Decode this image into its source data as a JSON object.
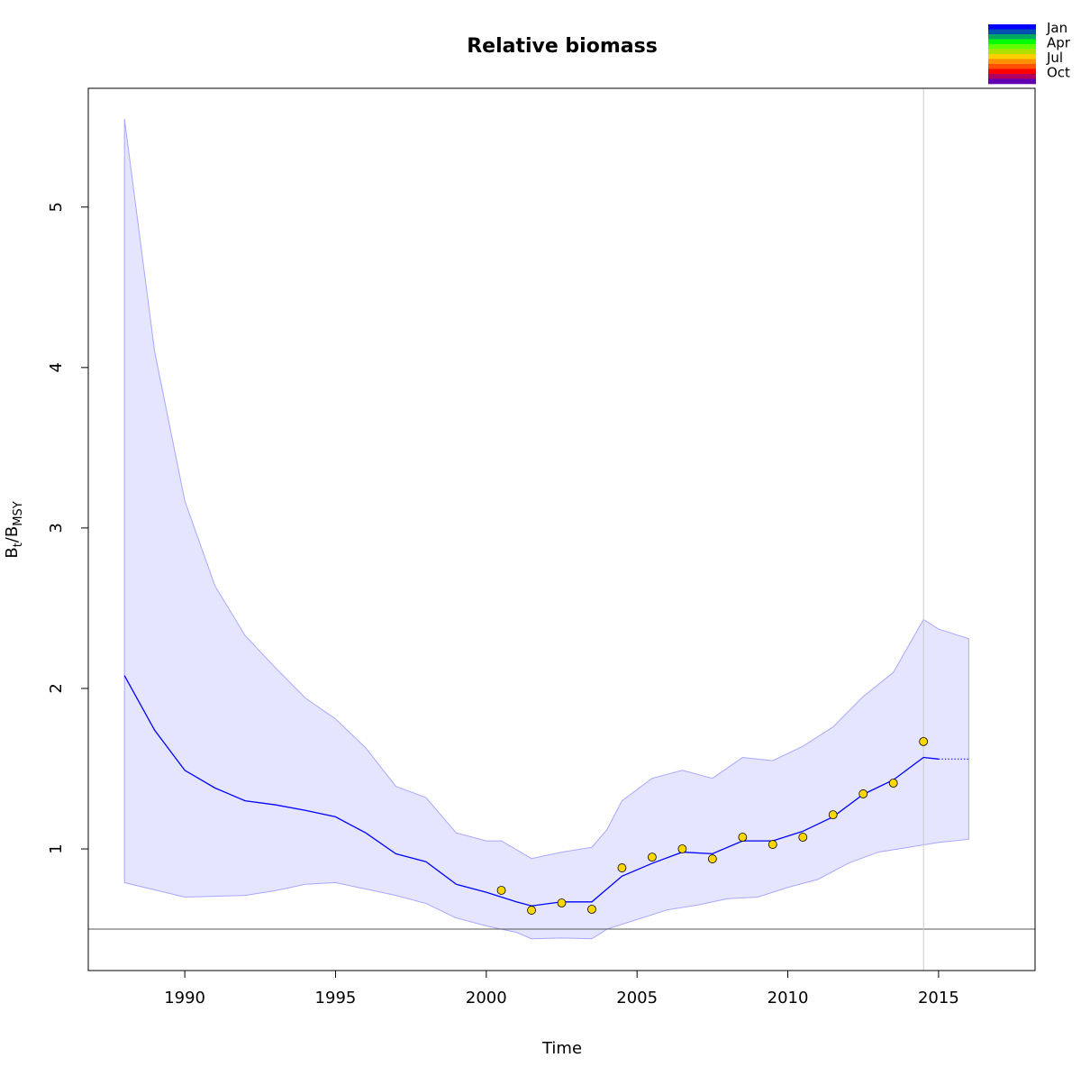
{
  "chart_data": {
    "type": "line",
    "title": "Relative biomass",
    "xlabel": "Time",
    "ylabel_main": "B",
    "ylabel_sub1": "t",
    "ylabel_sep": "/",
    "ylabel_main2": "B",
    "ylabel_sub2": "MSY",
    "xlim": [
      1986.8,
      2018.2
    ],
    "ylim": [
      0.242,
      5.74
    ],
    "xticks": [
      1990,
      1995,
      2000,
      2005,
      2010,
      2015
    ],
    "yticks": [
      1,
      2,
      3,
      4,
      5
    ],
    "grid": false,
    "reference_hline": 0.5,
    "reference_vline": 2014.5,
    "colors": {
      "median": "#0000ff",
      "band_fill": "#e5e5ff",
      "band_edge": "#a8a8ff",
      "points": "#ffd700",
      "hline": "#555555",
      "vline": "#cccccc"
    },
    "median": {
      "x": [
        1988,
        1989,
        1990,
        1991,
        1992,
        1993,
        1994,
        1995,
        1996,
        1997,
        1998,
        1999,
        2000,
        2001,
        2001.5,
        2002.5,
        2003.5,
        2004.5,
        2005.5,
        2006.5,
        2007.5,
        2008.5,
        2009.5,
        2010.5,
        2011.5,
        2012.5,
        2013.5,
        2014.5,
        2015
      ],
      "y": [
        2.08,
        1.74,
        1.49,
        1.38,
        1.3,
        1.275,
        1.24,
        1.2,
        1.1,
        0.97,
        0.92,
        0.78,
        0.73,
        0.67,
        0.645,
        0.67,
        0.67,
        0.83,
        0.91,
        0.98,
        0.97,
        1.05,
        1.05,
        1.11,
        1.2,
        1.34,
        1.43,
        1.57,
        1.56
      ]
    },
    "prediction": {
      "x": [
        2015,
        2016
      ],
      "y": [
        1.56,
        1.56
      ],
      "style": "dotted"
    },
    "upper": {
      "x": [
        1988,
        1989,
        1990,
        1991,
        1992,
        1993,
        1994,
        1995,
        1996,
        1997,
        1998,
        1999,
        2000,
        2000.5,
        2001.5,
        2002.5,
        2003.5,
        2004,
        2004.5,
        2005.5,
        2006.5,
        2007.5,
        2008.5,
        2009.5,
        2010.5,
        2011.5,
        2012.5,
        2013.5,
        2014.5,
        2015,
        2016
      ],
      "y": [
        5.55,
        4.1,
        3.17,
        2.64,
        2.33,
        2.13,
        1.94,
        1.81,
        1.63,
        1.39,
        1.32,
        1.1,
        1.05,
        1.05,
        0.94,
        0.98,
        1.01,
        1.12,
        1.3,
        1.44,
        1.49,
        1.44,
        1.57,
        1.55,
        1.64,
        1.76,
        1.95,
        2.1,
        2.43,
        2.37,
        2.31
      ]
    },
    "lower": {
      "x": [
        1988,
        1990,
        1992,
        1993,
        1994,
        1995,
        1996,
        1997,
        1998,
        1999,
        2000,
        2001,
        2001.5,
        2002.5,
        2003.5,
        2004,
        2005,
        2006,
        2007,
        2008,
        2009,
        2010,
        2011,
        2012,
        2013,
        2014,
        2015,
        2016
      ],
      "y": [
        0.79,
        0.7,
        0.71,
        0.74,
        0.78,
        0.79,
        0.75,
        0.71,
        0.66,
        0.57,
        0.52,
        0.48,
        0.44,
        0.445,
        0.44,
        0.5,
        0.56,
        0.62,
        0.65,
        0.69,
        0.7,
        0.76,
        0.81,
        0.91,
        0.98,
        1.01,
        1.04,
        1.06
      ]
    },
    "observations": {
      "x": [
        2000.5,
        2001.5,
        2002.5,
        2003.5,
        2004.5,
        2005.5,
        2006.5,
        2007.5,
        2008.5,
        2009.5,
        2010.5,
        2011.5,
        2012.5,
        2013.5,
        2014.5
      ],
      "y": [
        0.742,
        0.618,
        0.663,
        0.624,
        0.882,
        0.949,
        1.0,
        0.938,
        1.073,
        1.028,
        1.073,
        1.213,
        1.343,
        1.41,
        1.669
      ]
    },
    "legend": {
      "placement": "top-right",
      "labels": [
        "Jan",
        "Apr",
        "Jul",
        "Oct"
      ],
      "colors": [
        "#0000ff",
        "#0050b0",
        "#00a864",
        "#00ff00",
        "#60ff00",
        "#b0e000",
        "#ffd000",
        "#ff9000",
        "#ff5000",
        "#ff0000",
        "#b00060",
        "#6000b0"
      ]
    }
  }
}
